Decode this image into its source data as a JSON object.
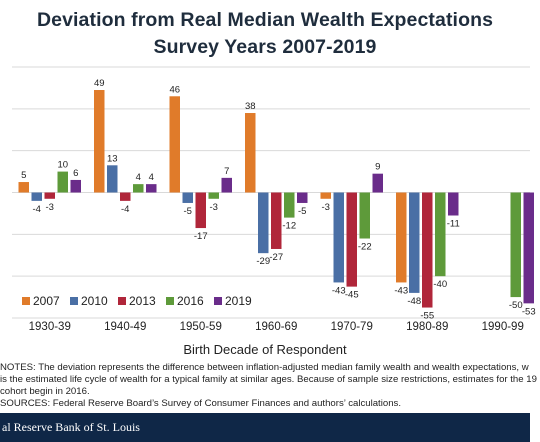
{
  "chart_data": {
    "type": "bar",
    "title": "Deviation from Real Median Wealth Expectations",
    "subtitle": "Survey Years 2007-2019",
    "xlabel": "Birth Decade of Respondent",
    "ylabel": "",
    "ylim": [
      -60,
      60
    ],
    "grid": true,
    "legend_position": "bottom-left",
    "categories": [
      "1930-39",
      "1940-49",
      "1950-59",
      "1960-69",
      "1970-79",
      "1980-89",
      "1990-99"
    ],
    "series": [
      {
        "name": "2007",
        "color": "#e07b2a",
        "values": [
          5,
          49,
          46,
          38,
          -3,
          -43,
          null
        ]
      },
      {
        "name": "2010",
        "color": "#4a6fa5",
        "values": [
          -4,
          13,
          -5,
          -29,
          -43,
          -48,
          null
        ]
      },
      {
        "name": "2013",
        "color": "#b0263a",
        "values": [
          -3,
          -4,
          -17,
          -27,
          -45,
          -55,
          null
        ]
      },
      {
        "name": "2016",
        "color": "#5e9a3a",
        "values": [
          10,
          4,
          -3,
          -12,
          -22,
          -40,
          -50
        ]
      },
      {
        "name": "2019",
        "color": "#6a2c8a",
        "values": [
          6,
          4,
          7,
          -5,
          9,
          -11,
          -53
        ]
      }
    ]
  },
  "notes": [
    "NOTES: The deviation represents the difference between inflation-adjusted median family wealth and wealth expectations, w",
    "is the estimated life cycle of wealth for a typical family at similar ages. Because of sample size restrictions, estimates for the 19",
    "cohort  begin in 2016.",
    "SOURCES: Federal Reserve Board’s Survey of Consumer Finances and authors’ calculations."
  ],
  "footer": "al Reserve Bank of St. Louis"
}
